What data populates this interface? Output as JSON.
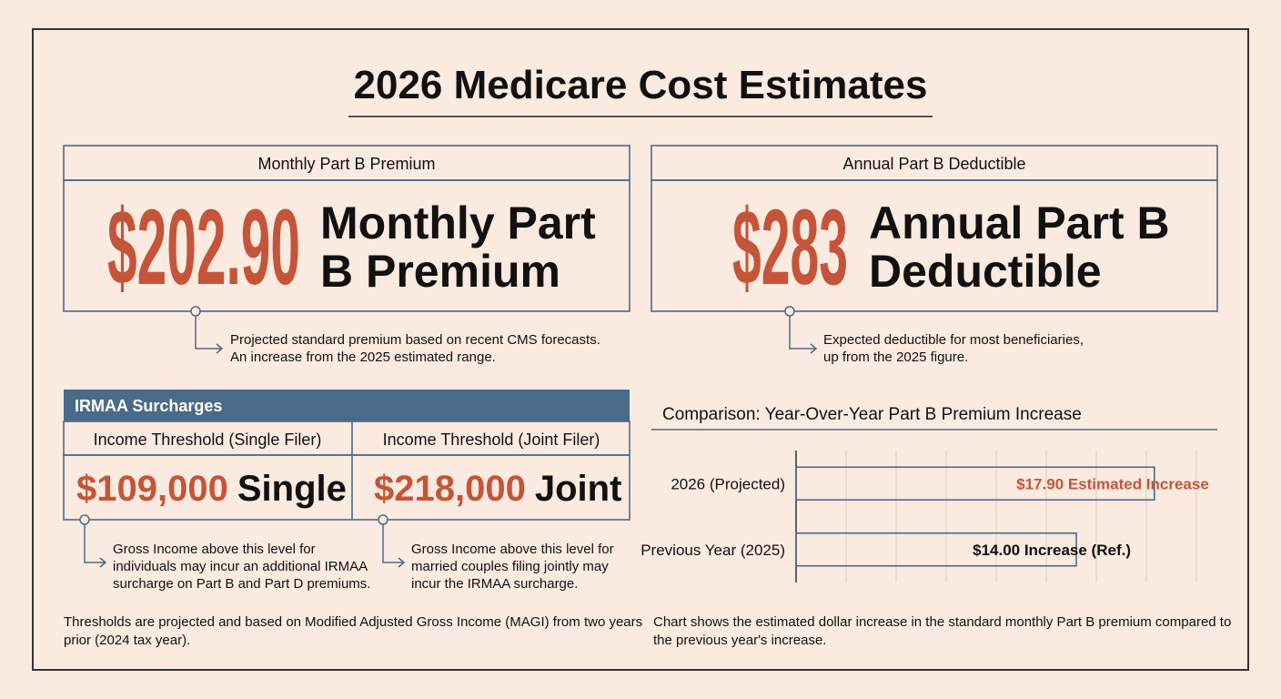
{
  "title": "2026 Medicare Cost Estimates",
  "cards": [
    {
      "header": "Monthly Part B Premium",
      "amount": "$202.90",
      "label_lines": [
        "Monthly Part",
        "B Premium"
      ],
      "note_lines": [
        "Projected standard premium based on recent CMS forecasts.",
        "An increase from the 2025 estimated range."
      ]
    },
    {
      "header": "Annual Part B Deductible",
      "amount": "$283",
      "label_lines": [
        "Annual Part B",
        "Deductible"
      ],
      "note_lines": [
        "Expected deductible for most beneficiaries,",
        "up from the 2025 figure."
      ]
    }
  ],
  "irmaa": {
    "title": "IRMAA Surcharges",
    "columns": [
      {
        "header": "Income Threshold (Single Filer)",
        "amount": "$109,000",
        "label": "Single",
        "note_lines": [
          "Gross Income above this level for",
          "individuals may incur an additional IRMAA",
          "surcharge on Part B and Part D premiums."
        ]
      },
      {
        "header": "Income Threshold (Joint Filer)",
        "amount": "$218,000",
        "label": "Joint",
        "note_lines": [
          "Gross Income above this level for",
          "married couples filing jointly may",
          "incur the IRMAA surcharge."
        ]
      }
    ],
    "footnote_lines": [
      "Thresholds are projected and based on Modified Adjusted Gross Income (MAGI) from two years",
      "prior (2024 tax year)."
    ]
  },
  "chart_data": {
    "type": "bar",
    "orientation": "horizontal",
    "title": "Comparison: Year-Over-Year Part B Premium Increase",
    "categories": [
      "2026 (Projected)",
      "Previous Year (2025)"
    ],
    "values": [
      17.9,
      14
    ],
    "value_labels": [
      "$17.90 Estimated Increase",
      "$14.00 Increase (Ref.)"
    ],
    "label_colors": [
      "#c4553a",
      "#111111"
    ],
    "color": "#4a6a8a",
    "xlim": [
      0,
      20
    ],
    "xticks": [
      0,
      2.5,
      5,
      7.5,
      10,
      12.5,
      15,
      17.5,
      20
    ],
    "grid": true,
    "caption_lines": [
      "Chart shows the estimated dollar increase in the standard monthly Part B premium compared to",
      "the previous year's increase."
    ]
  }
}
